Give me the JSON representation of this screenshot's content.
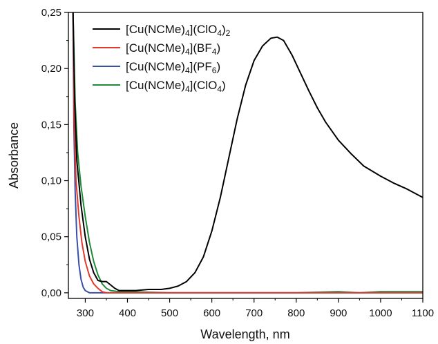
{
  "chart_data": {
    "type": "line",
    "title": "",
    "xlabel": "Wavelength, nm",
    "ylabel": "Absorbance",
    "xlim": [
      260,
      1100
    ],
    "ylim": [
      -0.005,
      0.25
    ],
    "xticks": [
      300,
      400,
      500,
      600,
      700,
      800,
      900,
      1000,
      1100
    ],
    "xtick_labels": [
      "300",
      "400",
      "500",
      "600",
      "700",
      "800",
      "900",
      "1000",
      "1100"
    ],
    "yticks": [
      0.0,
      0.05,
      0.1,
      0.15,
      0.2,
      0.25
    ],
    "ytick_labels": [
      "0,00",
      "0,05",
      "0,10",
      "0,15",
      "0,20",
      "0,25"
    ],
    "grid": false,
    "legend_position": "top-left",
    "series": [
      {
        "name": "[Cu(NCMe)4](ClO4)2",
        "label_parts": [
          {
            "t": "[Cu(NCMe)"
          },
          {
            "t": "4",
            "sub": true
          },
          {
            "t": "](ClO"
          },
          {
            "t": "4",
            "sub": true
          },
          {
            "t": ")"
          },
          {
            "t": "2",
            "sub": true
          }
        ],
        "color": "#000000",
        "points": [
          [
            271,
            0.25
          ],
          [
            275,
            0.17
          ],
          [
            280,
            0.118
          ],
          [
            290,
            0.078
          ],
          [
            300,
            0.05
          ],
          [
            310,
            0.03
          ],
          [
            320,
            0.018
          ],
          [
            330,
            0.011
          ],
          [
            340,
            0.01
          ],
          [
            350,
            0.01
          ],
          [
            360,
            0.007
          ],
          [
            370,
            0.004
          ],
          [
            380,
            0.002
          ],
          [
            400,
            0.002
          ],
          [
            420,
            0.002
          ],
          [
            450,
            0.003
          ],
          [
            480,
            0.003
          ],
          [
            500,
            0.004
          ],
          [
            520,
            0.006
          ],
          [
            540,
            0.01
          ],
          [
            560,
            0.018
          ],
          [
            580,
            0.032
          ],
          [
            600,
            0.055
          ],
          [
            620,
            0.085
          ],
          [
            640,
            0.12
          ],
          [
            660,
            0.155
          ],
          [
            680,
            0.185
          ],
          [
            700,
            0.207
          ],
          [
            720,
            0.22
          ],
          [
            740,
            0.227
          ],
          [
            755,
            0.228
          ],
          [
            770,
            0.225
          ],
          [
            790,
            0.212
          ],
          [
            810,
            0.196
          ],
          [
            830,
            0.18
          ],
          [
            850,
            0.165
          ],
          [
            870,
            0.152
          ],
          [
            900,
            0.136
          ],
          [
            930,
            0.124
          ],
          [
            960,
            0.113
          ],
          [
            1000,
            0.104
          ],
          [
            1030,
            0.098
          ],
          [
            1060,
            0.093
          ],
          [
            1080,
            0.089
          ],
          [
            1100,
            0.085
          ]
        ]
      },
      {
        "name": "[Cu(NCMe)4](BF4)",
        "label_parts": [
          {
            "t": "[Cu(NCMe)"
          },
          {
            "t": "4",
            "sub": true
          },
          {
            "t": "](BF"
          },
          {
            "t": "4",
            "sub": true
          },
          {
            "t": ")"
          }
        ],
        "color": "#e03a2f",
        "points": [
          [
            271,
            0.25
          ],
          [
            274,
            0.15
          ],
          [
            278,
            0.1
          ],
          [
            285,
            0.068
          ],
          [
            292,
            0.045
          ],
          [
            300,
            0.028
          ],
          [
            310,
            0.015
          ],
          [
            320,
            0.008
          ],
          [
            330,
            0.004
          ],
          [
            340,
            0.001
          ],
          [
            350,
            0.0
          ],
          [
            400,
            0.0
          ],
          [
            500,
            0.0
          ],
          [
            600,
            0.0
          ],
          [
            700,
            0.0
          ],
          [
            800,
            0.0
          ],
          [
            900,
            0.0
          ],
          [
            1000,
            0.0
          ],
          [
            1100,
            0.0
          ]
        ]
      },
      {
        "name": "[Cu(NCMe)4](PF6)",
        "label_parts": [
          {
            "t": "[Cu(NCMe)"
          },
          {
            "t": "4",
            "sub": true
          },
          {
            "t": "](PF"
          },
          {
            "t": "6",
            "sub": true
          },
          {
            "t": ")"
          }
        ],
        "color": "#3a4fa8",
        "points": [
          [
            271,
            0.25
          ],
          [
            273,
            0.15
          ],
          [
            276,
            0.09
          ],
          [
            280,
            0.05
          ],
          [
            285,
            0.025
          ],
          [
            290,
            0.012
          ],
          [
            295,
            0.005
          ],
          [
            300,
            0.002
          ],
          [
            310,
            0.0
          ],
          [
            400,
            0.0
          ],
          [
            500,
            0.0
          ],
          [
            600,
            0.0
          ],
          [
            700,
            0.0
          ],
          [
            800,
            0.0
          ],
          [
            900,
            0.0
          ],
          [
            1000,
            0.0
          ],
          [
            1100,
            0.0
          ]
        ]
      },
      {
        "name": "[Cu(NCMe)4](ClO4)",
        "label_parts": [
          {
            "t": "[Cu(NCMe)"
          },
          {
            "t": "4",
            "sub": true
          },
          {
            "t": "](ClO"
          },
          {
            "t": "4",
            "sub": true
          },
          {
            "t": ")"
          }
        ],
        "color": "#1e8a3a",
        "points": [
          [
            271,
            0.25
          ],
          [
            276,
            0.17
          ],
          [
            282,
            0.125
          ],
          [
            290,
            0.095
          ],
          [
            300,
            0.068
          ],
          [
            310,
            0.045
          ],
          [
            320,
            0.028
          ],
          [
            330,
            0.016
          ],
          [
            340,
            0.008
          ],
          [
            350,
            0.004
          ],
          [
            360,
            0.002
          ],
          [
            380,
            0.001
          ],
          [
            400,
            0.001
          ],
          [
            500,
            0.0
          ],
          [
            600,
            0.0
          ],
          [
            700,
            0.0
          ],
          [
            800,
            0.0
          ],
          [
            900,
            0.001
          ],
          [
            950,
            0.0
          ],
          [
            1000,
            0.001
          ],
          [
            1050,
            0.001
          ],
          [
            1100,
            0.001
          ]
        ]
      }
    ]
  }
}
